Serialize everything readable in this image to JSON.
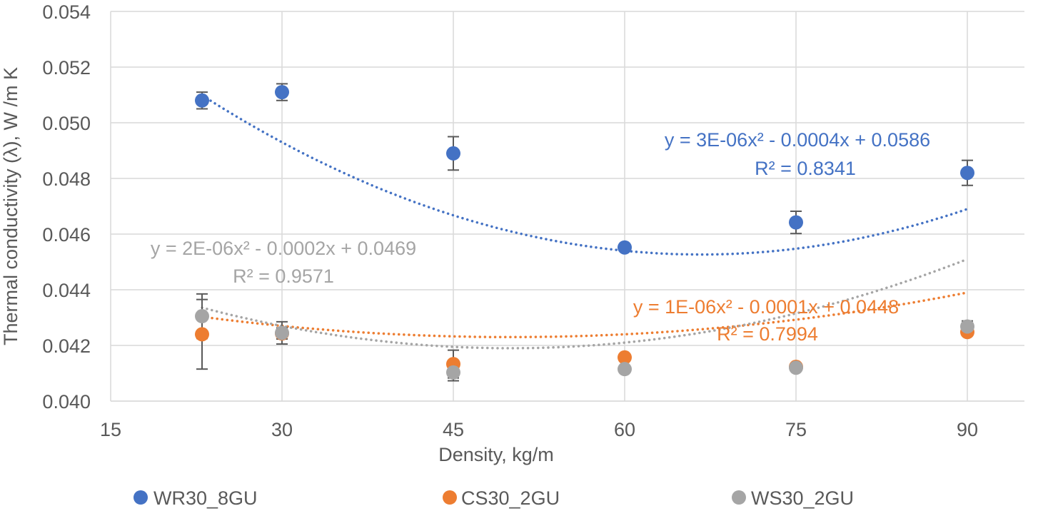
{
  "chart_data": {
    "type": "scatter",
    "title": "",
    "xlabel": "Density, kg/m",
    "ylabel": "Thermal conductivity (λ), W /m K",
    "xlim": [
      15,
      95
    ],
    "ylim": [
      0.04,
      0.054
    ],
    "x_ticks": [
      15,
      30,
      45,
      60,
      75,
      90
    ],
    "x_tick_labels": [
      "15",
      "30",
      "45",
      "60",
      "75",
      "90"
    ],
    "y_ticks": [
      0.04,
      0.042,
      0.044,
      0.046,
      0.048,
      0.05,
      0.052,
      0.054
    ],
    "y_tick_labels": [
      "0.040",
      "0.042",
      "0.044",
      "0.046",
      "0.048",
      "0.050",
      "0.052",
      "0.054"
    ],
    "grid": true,
    "legend_position": "bottom",
    "series": [
      {
        "name": "WR30_8GU",
        "color": "#4472c4",
        "points": [
          {
            "x": 23,
            "y": 0.0508,
            "err": 0.0003
          },
          {
            "x": 30,
            "y": 0.0511,
            "err": 0.0003
          },
          {
            "x": 45,
            "y": 0.0489,
            "err": 0.0006
          },
          {
            "x": 60,
            "y": 0.04552,
            "err": 0
          },
          {
            "x": 75,
            "y": 0.04642,
            "err": 0.0004
          },
          {
            "x": 90,
            "y": 0.0482,
            "err": 0.00045
          }
        ],
        "trendline": {
          "type": "polynomial",
          "a": 3e-06,
          "b": -0.0004,
          "c": 0.0586,
          "x_range": [
            23,
            90
          ]
        },
        "equation": "y = 3E-06x² - 0.0004x + 0.0586",
        "r_squared": "R² = 0.8341"
      },
      {
        "name": "CS30_2GU",
        "color": "#ed7d31",
        "points": [
          {
            "x": 23,
            "y": 0.0424,
            "err": 0.00125
          },
          {
            "x": 30,
            "y": 0.04243,
            "err": 0.0002
          },
          {
            "x": 45,
            "y": 0.04133,
            "err": 0.0005
          },
          {
            "x": 60,
            "y": 0.04157,
            "err": 0
          },
          {
            "x": 75,
            "y": 0.04123,
            "err": 0
          },
          {
            "x": 90,
            "y": 0.04248,
            "err": 0
          }
        ],
        "trendline": {
          "type": "polynomial",
          "a": 1e-06,
          "b": -0.0001,
          "c": 0.0448,
          "x_range": [
            23,
            90
          ]
        },
        "equation": "y = 1E-06x² - 0.0001x + 0.0448",
        "r_squared": "R² = 0.7994"
      },
      {
        "name": "WS30_2GU",
        "color": "#a5a5a5",
        "points": [
          {
            "x": 23,
            "y": 0.04305,
            "err": 0.0008
          },
          {
            "x": 30,
            "y": 0.04245,
            "err": 0.0004
          },
          {
            "x": 45,
            "y": 0.04103,
            "err": 0.0003
          },
          {
            "x": 60,
            "y": 0.04115,
            "err": 0
          },
          {
            "x": 75,
            "y": 0.0412,
            "err": 0
          },
          {
            "x": 90,
            "y": 0.04268,
            "err": 0.0002
          }
        ],
        "trendline": {
          "type": "polynomial",
          "a": 2e-06,
          "b": -0.0002,
          "c": 0.0469,
          "x_range": [
            23,
            90
          ]
        },
        "equation": "y = 2E-06x² - 0.0002x + 0.0469",
        "r_squared": "R² = 0.9571"
      }
    ]
  }
}
